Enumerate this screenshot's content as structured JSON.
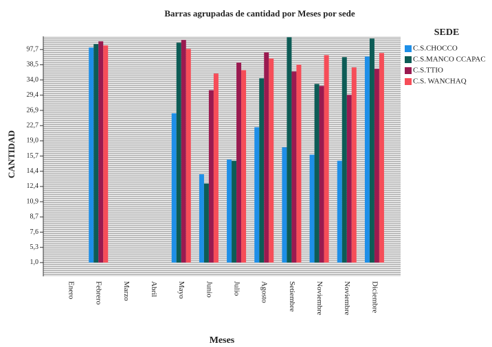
{
  "chart_data": {
    "type": "bar",
    "title": "Barras agrupadas de cantidad por Meses por sede",
    "x_label": "Meses",
    "y_label": "CANTIDAD",
    "legend_title": "SEDE",
    "legend": "right",
    "categories": [
      "Enero",
      "Febrero",
      "Marzo",
      "Abril",
      "Mayo",
      "Junio",
      "Julio",
      "Agosto",
      "Setiembre",
      "Noviembre",
      "Noviembre",
      "Diciembre"
    ],
    "series": [
      {
        "name": "C.S.CHOCCO",
        "color": "#1e8fe8",
        "values": [
          null,
          105.4,
          null,
          null,
          26.1,
          14.0,
          15.4,
          22.3,
          17.6,
          16.0,
          15.3,
          70.5
        ]
      },
      {
        "name": "C.S.MANCO CCAPAC",
        "color": "#0d5c56",
        "values": [
          null,
          119,
          null,
          null,
          124.3,
          12.8,
          15.3,
          34.5,
          145.6,
          32.8,
          68.1,
          140.3
        ]
      },
      {
        "name": "C.S.TTIO",
        "color": "#9a1a50",
        "values": [
          null,
          129.7,
          null,
          null,
          135,
          30.9,
          46.8,
          86.5,
          36.5,
          32.2,
          29.5,
          37.3
        ]
      },
      {
        "name": "C.S. WANCHAQ",
        "color": "#f64d58",
        "values": [
          null,
          113.7,
          null,
          null,
          100.1,
          35.9,
          36.9,
          62.8,
          38.5,
          75.8,
          37.7,
          84.1
        ]
      }
    ],
    "ylim": [
      -2.9,
      149
    ],
    "yticks": [
      {
        "value": 1.0,
        "label": "1,0"
      },
      {
        "value": 5.3,
        "label": "5,3"
      },
      {
        "value": 7.6,
        "label": "7,6"
      },
      {
        "value": 8.7,
        "label": "8,7"
      },
      {
        "value": 10.9,
        "label": "10,9"
      },
      {
        "value": 12.4,
        "label": "12,4"
      },
      {
        "value": 14.4,
        "label": "14,4"
      },
      {
        "value": 15.7,
        "label": "15,7"
      },
      {
        "value": 19.0,
        "label": "19,0"
      },
      {
        "value": 22.7,
        "label": "22,7"
      },
      {
        "value": 26.9,
        "label": "26,9"
      },
      {
        "value": 29.4,
        "label": "29,4"
      },
      {
        "value": 34.0,
        "label": "34,0"
      },
      {
        "value": 38.5,
        "label": "38,5"
      },
      {
        "value": 97.7,
        "label": "97,7"
      }
    ],
    "grid": true
  }
}
